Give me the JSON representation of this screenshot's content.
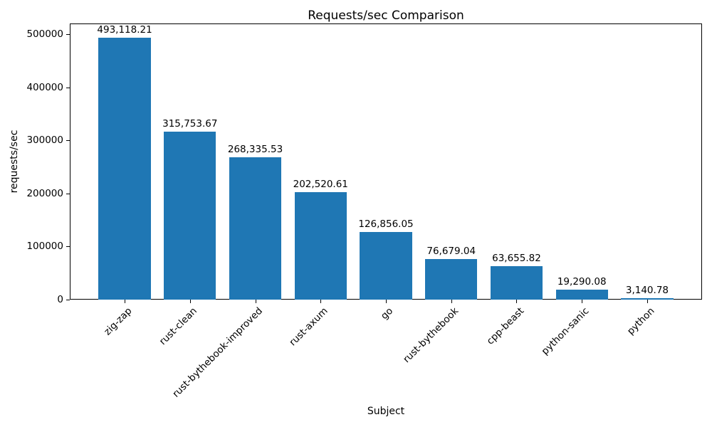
{
  "chart_data": {
    "type": "bar",
    "title": "Requests/sec Comparison",
    "xlabel": "Subject",
    "ylabel": "requests/sec",
    "categories": [
      "zig-zap",
      "rust-clean",
      "rust-bythebook-improved",
      "rust-axum",
      "go",
      "rust-bythebook",
      "cpp-beast",
      "python-sanic",
      "python"
    ],
    "values": [
      493118.21,
      315753.67,
      268335.53,
      202520.61,
      126856.05,
      76679.04,
      63655.82,
      19290.08,
      3140.78
    ],
    "value_labels": [
      "493,118.21",
      "315,753.67",
      "268,335.53",
      "202,520.61",
      "126,856.05",
      "76,679.04",
      "63,655.82",
      "19,290.08",
      "3,140.78"
    ],
    "bar_color": "#1f77b4",
    "ylim": [
      0,
      520000
    ],
    "yticks": [
      0,
      100000,
      200000,
      300000,
      400000,
      500000
    ],
    "ytick_labels": [
      "0",
      "100000",
      "200000",
      "300000",
      "400000",
      "500000"
    ],
    "grid": false,
    "legend_position": "none",
    "background_color": "#ffffff",
    "text_color": "#000000"
  }
}
